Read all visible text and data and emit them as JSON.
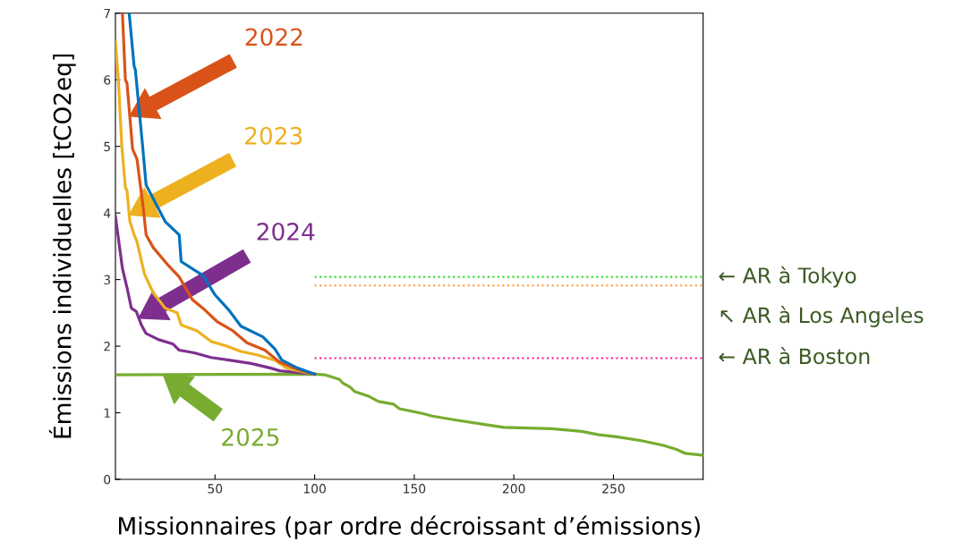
{
  "chart_data": {
    "type": "line",
    "xlabel": "Missionnaires (par ordre décroissant d’émissions)",
    "ylabel": "Émissions individuelles [tCO2eq]",
    "xlim": [
      0,
      295
    ],
    "ylim": [
      0,
      7
    ],
    "xticks": [
      50,
      100,
      150,
      200,
      250
    ],
    "yticks": [
      0,
      1,
      2,
      3,
      4,
      5,
      6,
      7
    ],
    "grid": false,
    "legend": false,
    "line_style": "solid",
    "marker": "none",
    "series": [
      {
        "color": "#0072bd",
        "x": [
          6.9,
          9.4,
          10,
          13.5,
          15.4,
          25,
          32,
          33,
          44,
          50,
          57,
          63,
          74,
          80,
          83.5,
          91.5,
          98,
          100
        ],
        "values": [
          7,
          6.2,
          6.15,
          5.05,
          4.42,
          3.87,
          3.67,
          3.27,
          3.06,
          2.77,
          2.54,
          2.3,
          2.14,
          1.96,
          1.79,
          1.67,
          1.6,
          1.58
        ]
      },
      {
        "name": "2022",
        "color": "#d95319",
        "x": [
          3.5,
          5,
          5.8,
          8.6,
          10.8,
          14,
          15.4,
          19,
          26.6,
          32,
          38.6,
          45,
          51,
          59,
          66,
          75,
          82.5,
          91.5,
          100
        ],
        "values": [
          7,
          6.0,
          5.95,
          4.96,
          4.81,
          4.07,
          3.67,
          3.48,
          3.21,
          3.04,
          2.7,
          2.54,
          2.37,
          2.23,
          2.05,
          1.94,
          1.76,
          1.65,
          1.58
        ]
      },
      {
        "name": "2023",
        "color": "#edb120",
        "x": [
          0,
          1.5,
          3.2,
          5,
          5.8,
          7.2,
          9.4,
          10.8,
          14.6,
          19,
          25,
          31,
          33,
          41,
          48,
          56,
          63,
          71,
          80,
          86,
          95,
          100
        ],
        "values": [
          6.57,
          6.0,
          5.0,
          4.38,
          4.34,
          3.88,
          3.67,
          3.57,
          3.08,
          2.8,
          2.57,
          2.5,
          2.32,
          2.23,
          2.07,
          2.0,
          1.92,
          1.87,
          1.79,
          1.67,
          1.61,
          1.58
        ]
      },
      {
        "name": "2024",
        "color": "#7e2f8e",
        "x": [
          0,
          3.5,
          5.8,
          8,
          10.5,
          13,
          15.4,
          21.5,
          29,
          32,
          39.5,
          48,
          57,
          68,
          78,
          82.5,
          100
        ],
        "values": [
          3.95,
          3.17,
          2.88,
          2.57,
          2.52,
          2.32,
          2.19,
          2.1,
          2.03,
          1.94,
          1.9,
          1.83,
          1.79,
          1.74,
          1.67,
          1.63,
          1.58
        ]
      },
      {
        "name": "2025",
        "color": "#77ac30",
        "x": [
          0,
          100,
          105,
          112.5,
          114,
          118,
          120,
          127,
          132,
          139.5,
          142.5,
          154,
          159,
          171,
          186,
          195,
          219,
          230.5,
          234,
          242.6,
          251.5,
          264,
          275,
          281.6,
          286,
          295
        ],
        "values": [
          1.57,
          1.58,
          1.57,
          1.5,
          1.45,
          1.38,
          1.32,
          1.25,
          1.17,
          1.13,
          1.06,
          0.99,
          0.95,
          0.89,
          0.82,
          0.78,
          0.76,
          0.73,
          0.72,
          0.67,
          0.64,
          0.58,
          0.51,
          0.45,
          0.39,
          0.36
        ]
      }
    ],
    "ref_lines": [
      {
        "axis": "y",
        "value": 3.04,
        "label": "← AR à Tokyo",
        "color": "#33dd33",
        "line_style": "dotted"
      },
      {
        "axis": "y",
        "value": 2.91,
        "label": "↖ AR à Los Angeles",
        "color": "#ff9933",
        "line_style": "dotted"
      },
      {
        "axis": "y",
        "value": 1.82,
        "label": "← AR à Boston",
        "color": "#ff1493",
        "line_style": "dotted"
      }
    ]
  }
}
